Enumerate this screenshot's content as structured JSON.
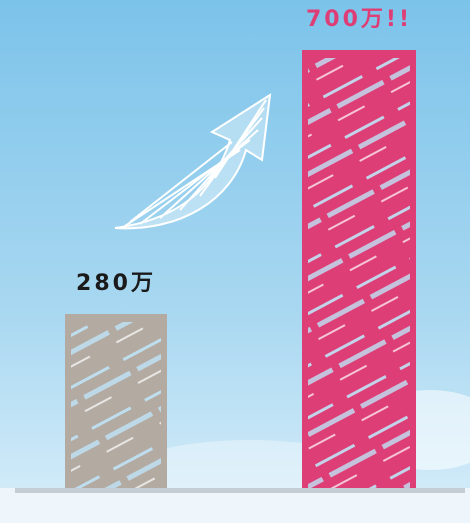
{
  "chart_data": {
    "type": "bar",
    "values": [
      280,
      700
    ],
    "value_labels": [
      "280万",
      "700万!!"
    ],
    "colors": [
      "#b3aaa2",
      "#de3e76"
    ],
    "label_colors": [
      "#1a1a1a",
      "#de3e76"
    ]
  }
}
